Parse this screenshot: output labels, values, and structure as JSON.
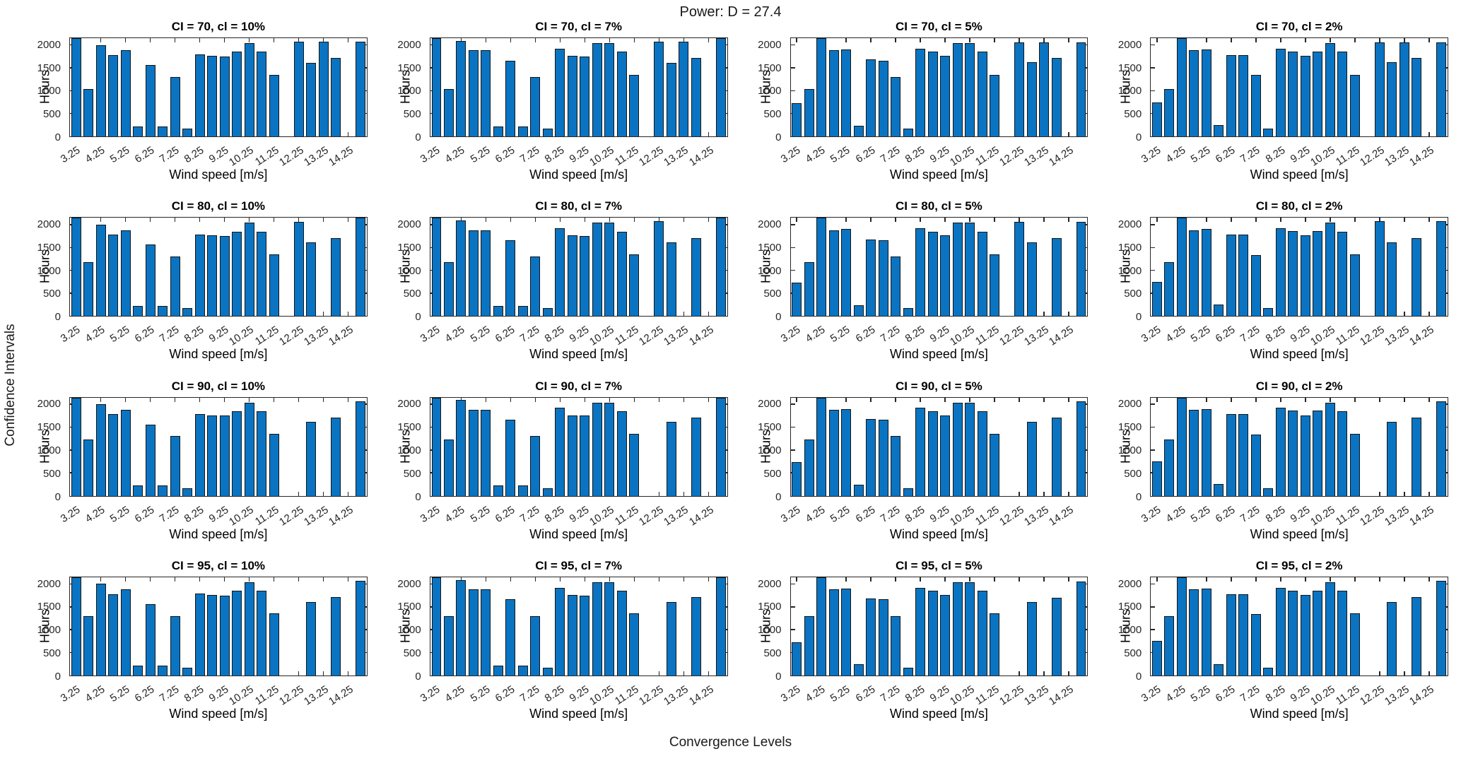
{
  "figure": {
    "title": "Power: D = 27.4",
    "left_label": "Confidence Intervals",
    "bottom_label": "Convergence Levels"
  },
  "chart_data": {
    "type": "bar",
    "title": "Power: D = 27.4",
    "row_label": "Confidence Intervals",
    "col_label": "Convergence Levels",
    "xlabel": "Wind speed [m/s]",
    "ylabel": "Hours",
    "grid": "off",
    "xlim": [
      3,
      15
    ],
    "ylim": [
      0,
      2150
    ],
    "note": "4x4 grid of subplots; rows are confidence intervals CI = 70/80/90/95, columns are convergence levels cl = 10%/7%/5%/2%; bars at 0.5 m/s bins; values of 2150 represent bars clipped at the axis top",
    "x_bin_centers": [
      3.25,
      3.75,
      4.25,
      4.75,
      5.25,
      5.75,
      6.25,
      6.75,
      7.25,
      7.75,
      8.25,
      8.75,
      9.25,
      9.75,
      10.25,
      10.75,
      11.25,
      11.75,
      12.25,
      12.75,
      13.25,
      13.75,
      14.25,
      14.75
    ],
    "x_tick_labels": [
      "3.25",
      "4.25",
      "5.25",
      "6.25",
      "7.25",
      "8.25",
      "9.25",
      "10.25",
      "11.25",
      "12.25",
      "13.25",
      "14.25"
    ],
    "y_ticks": [
      0,
      500,
      1000,
      1500,
      2000
    ],
    "y_tick_labels": [
      "0",
      "500",
      "1000",
      "1500",
      "2000"
    ],
    "bar_color": "#0a74c2",
    "bar_edge_color": "#151515",
    "axis_color": "#262626",
    "subplots": [
      {
        "ci": 70,
        "cl": "10%",
        "title": "CI = 70, cl = 10%",
        "values": [
          2150,
          1030,
          2000,
          1780,
          1880,
          220,
          1560,
          220,
          1300,
          170,
          1790,
          1760,
          1750,
          1850,
          2040,
          1850,
          1350,
          0,
          2070,
          1610,
          2070,
          1710,
          0,
          2070
        ]
      },
      {
        "ci": 70,
        "cl": "7%",
        "title": "CI = 70, cl = 7%",
        "values": [
          2150,
          1030,
          2090,
          1880,
          1880,
          220,
          1660,
          220,
          1300,
          170,
          1920,
          1760,
          1750,
          2040,
          2040,
          1850,
          1350,
          0,
          2070,
          1610,
          2070,
          1710,
          0,
          2150
        ]
      },
      {
        "ci": 70,
        "cl": "5%",
        "title": "CI = 70, cl = 5%",
        "values": [
          730,
          1040,
          2150,
          1880,
          1900,
          240,
          1680,
          1660,
          1300,
          170,
          1920,
          1850,
          1760,
          2040,
          2040,
          1850,
          1350,
          0,
          2060,
          1620,
          2060,
          1710,
          0,
          2060
        ]
      },
      {
        "ci": 70,
        "cl": "2%",
        "title": "CI = 70, cl = 2%",
        "values": [
          750,
          1040,
          2150,
          1880,
          1900,
          250,
          1780,
          1780,
          1340,
          170,
          1920,
          1860,
          1760,
          1860,
          2040,
          1850,
          1350,
          0,
          2060,
          1620,
          2060,
          1710,
          0,
          2060
        ]
      },
      {
        "ci": 80,
        "cl": "10%",
        "title": "CI = 80, cl = 10%",
        "values": [
          2150,
          1180,
          2000,
          1780,
          1880,
          220,
          1560,
          220,
          1300,
          170,
          1790,
          1760,
          1750,
          1850,
          2040,
          1850,
          1350,
          0,
          2060,
          1610,
          0,
          1710,
          0,
          2150
        ]
      },
      {
        "ci": 80,
        "cl": "7%",
        "title": "CI = 80, cl = 7%",
        "values": [
          2150,
          1180,
          2090,
          1880,
          1880,
          220,
          1660,
          220,
          1300,
          170,
          1920,
          1760,
          1750,
          2040,
          2040,
          1850,
          1350,
          0,
          2070,
          1610,
          0,
          1710,
          0,
          2150
        ]
      },
      {
        "ci": 80,
        "cl": "5%",
        "title": "CI = 80, cl = 5%",
        "values": [
          730,
          1180,
          2150,
          1880,
          1900,
          240,
          1680,
          1660,
          1300,
          170,
          1920,
          1850,
          1760,
          2040,
          2040,
          1850,
          1350,
          0,
          2060,
          1620,
          0,
          1710,
          0,
          2060
        ]
      },
      {
        "ci": 80,
        "cl": "2%",
        "title": "CI = 80, cl = 2%",
        "values": [
          750,
          1180,
          2150,
          1880,
          1900,
          250,
          1780,
          1780,
          1340,
          170,
          1920,
          1860,
          1760,
          1860,
          2040,
          1850,
          1350,
          0,
          2070,
          1620,
          0,
          1710,
          0,
          2070
        ]
      },
      {
        "ci": 90,
        "cl": "10%",
        "title": "CI = 90, cl = 10%",
        "values": [
          2150,
          1230,
          2000,
          1780,
          1880,
          220,
          1560,
          220,
          1300,
          170,
          1790,
          1760,
          1750,
          1850,
          2040,
          1850,
          1350,
          0,
          0,
          1610,
          0,
          1710,
          0,
          2070
        ]
      },
      {
        "ci": 90,
        "cl": "7%",
        "title": "CI = 90, cl = 7%",
        "values": [
          2150,
          1230,
          2090,
          1880,
          1880,
          220,
          1660,
          220,
          1300,
          170,
          1920,
          1760,
          1750,
          2040,
          2040,
          1850,
          1350,
          0,
          0,
          1610,
          0,
          1710,
          0,
          2150
        ]
      },
      {
        "ci": 90,
        "cl": "5%",
        "title": "CI = 90, cl = 5%",
        "values": [
          730,
          1230,
          2150,
          1880,
          1900,
          240,
          1680,
          1660,
          1300,
          170,
          1920,
          1850,
          1760,
          2040,
          2040,
          1850,
          1350,
          0,
          0,
          1610,
          0,
          1710,
          0,
          2060
        ]
      },
      {
        "ci": 90,
        "cl": "2%",
        "title": "CI = 90, cl = 2%",
        "values": [
          750,
          1230,
          2150,
          1880,
          1900,
          250,
          1780,
          1780,
          1340,
          170,
          1920,
          1860,
          1760,
          1860,
          2040,
          1850,
          1350,
          0,
          0,
          1610,
          0,
          1710,
          0,
          2070
        ]
      },
      {
        "ci": 95,
        "cl": "10%",
        "title": "CI = 95, cl = 10%",
        "values": [
          2150,
          1300,
          2000,
          1780,
          1880,
          220,
          1560,
          220,
          1300,
          170,
          1790,
          1760,
          1750,
          1850,
          2040,
          1850,
          1350,
          0,
          0,
          1610,
          0,
          1710,
          0,
          2070
        ]
      },
      {
        "ci": 95,
        "cl": "7%",
        "title": "CI = 95, cl = 7%",
        "values": [
          2150,
          1300,
          2090,
          1880,
          1880,
          220,
          1660,
          220,
          1300,
          170,
          1920,
          1760,
          1750,
          2040,
          2040,
          1850,
          1350,
          0,
          0,
          1610,
          0,
          1710,
          0,
          2150
        ]
      },
      {
        "ci": 95,
        "cl": "5%",
        "title": "CI = 95, cl = 5%",
        "values": [
          730,
          1300,
          2150,
          1880,
          1900,
          240,
          1680,
          1660,
          1300,
          170,
          1920,
          1850,
          1760,
          2040,
          2040,
          1850,
          1350,
          0,
          0,
          1610,
          0,
          1700,
          0,
          2060
        ]
      },
      {
        "ci": 95,
        "cl": "2%",
        "title": "CI = 95, cl = 2%",
        "values": [
          750,
          1300,
          2150,
          1880,
          1900,
          250,
          1780,
          1780,
          1340,
          170,
          1920,
          1860,
          1760,
          1860,
          2040,
          1850,
          1350,
          0,
          0,
          1610,
          0,
          1710,
          0,
          2070
        ]
      }
    ]
  }
}
